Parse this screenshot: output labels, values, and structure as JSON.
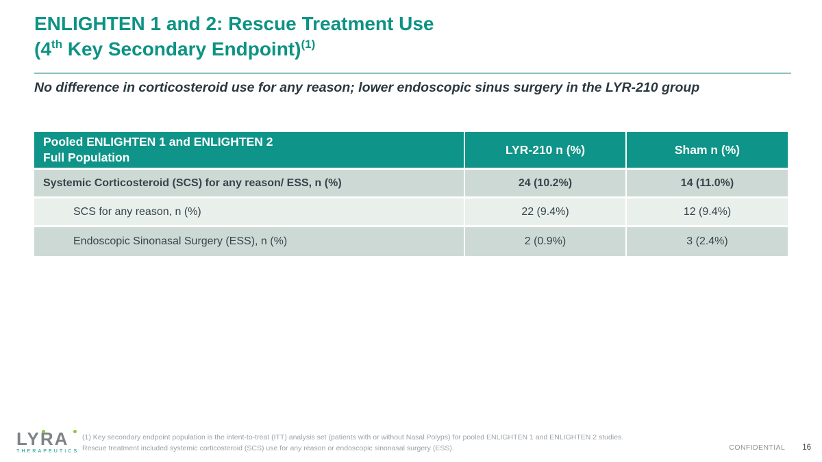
{
  "colors": {
    "accent_teal": "#0E9488",
    "title_teal": "#0D9384",
    "rule_teal": "#8FC0BB",
    "row_shaded": "#CDD9D5",
    "row_light": "#E9EFEB",
    "body_text": "#37444B",
    "logo_gray": "#7E8387",
    "logo_green": "#8CC63F"
  },
  "header": {
    "title_line1": "ENLIGHTEN 1 and 2: Rescue Treatment Use",
    "title_line2": {
      "open": "(4",
      "sup1": "th",
      "rest": " Key Secondary Endpoint)",
      "sup2": "(1)"
    },
    "subtitle": "No difference in corticosteroid use for any reason; lower endoscopic sinus surgery in the LYR-210 group"
  },
  "table": {
    "columns": {
      "col1_line1": "Pooled ENLIGHTEN 1 and ENLIGHTEN 2",
      "col1_line2": "Full Population",
      "col2": "LYR-210 n (%)",
      "col3": "Sham n (%)"
    },
    "rows": [
      {
        "label": "Systemic Corticosteroid (SCS) for any reason/ ESS, n (%)",
        "lyr210": "24 (10.2%)",
        "sham": "14 (11.0%)"
      },
      {
        "label": "SCS for any reason, n (%)",
        "lyr210": "22 (9.4%)",
        "sham": "12 (9.4%)"
      },
      {
        "label": "Endoscopic Sinonasal Surgery (ESS), n (%)",
        "lyr210": "2 (0.9%)",
        "sham": "3 (2.4%)"
      }
    ]
  },
  "footer": {
    "logo_name": "LYRA",
    "logo_tagline": "THERAPEUTICS",
    "footnote_line1": "(1) Key secondary endpoint population is the intent-to-treat (ITT) analysis set (patients with or without Nasal Polyps) for pooled ENLIGHTEN 1 and ENLIGHTEN 2 studies.",
    "footnote_line2": "Rescue treatment included systemic corticosteroid (SCS) use for any reason or endoscopic sinonasal surgery (ESS).",
    "confidential_label": "CONFIDENTIAL",
    "page_number": "16"
  }
}
